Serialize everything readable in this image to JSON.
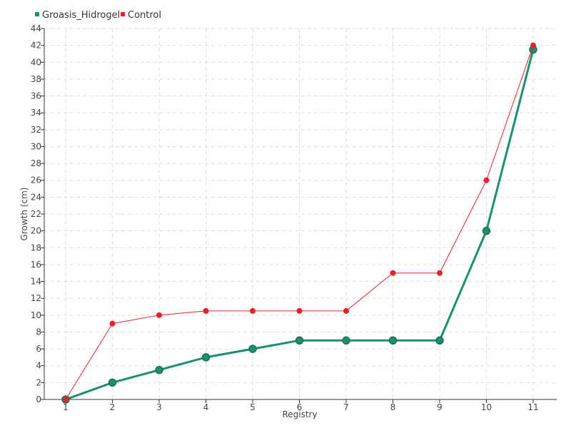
{
  "chart_data": {
    "type": "line",
    "title": "",
    "xlabel": "Registry",
    "ylabel": "Growth (cm)",
    "categories": [
      "1",
      "2",
      "3",
      "4",
      "5",
      "6",
      "7",
      "8",
      "9",
      "10",
      "11"
    ],
    "ylim": [
      0,
      44
    ],
    "ytick_step": 2,
    "grid": true,
    "legend_position": "top-left",
    "series": [
      {
        "name": "Groasis_Hidrogel",
        "color": "#1a9070",
        "values": [
          0,
          2,
          3.5,
          5,
          6,
          7,
          7,
          7,
          7,
          20,
          41.5
        ]
      },
      {
        "name": "Control",
        "color": "#e8202a",
        "values": [
          0,
          9,
          10,
          10.5,
          10.5,
          10.5,
          10.5,
          15,
          15,
          26,
          42
        ]
      }
    ]
  }
}
